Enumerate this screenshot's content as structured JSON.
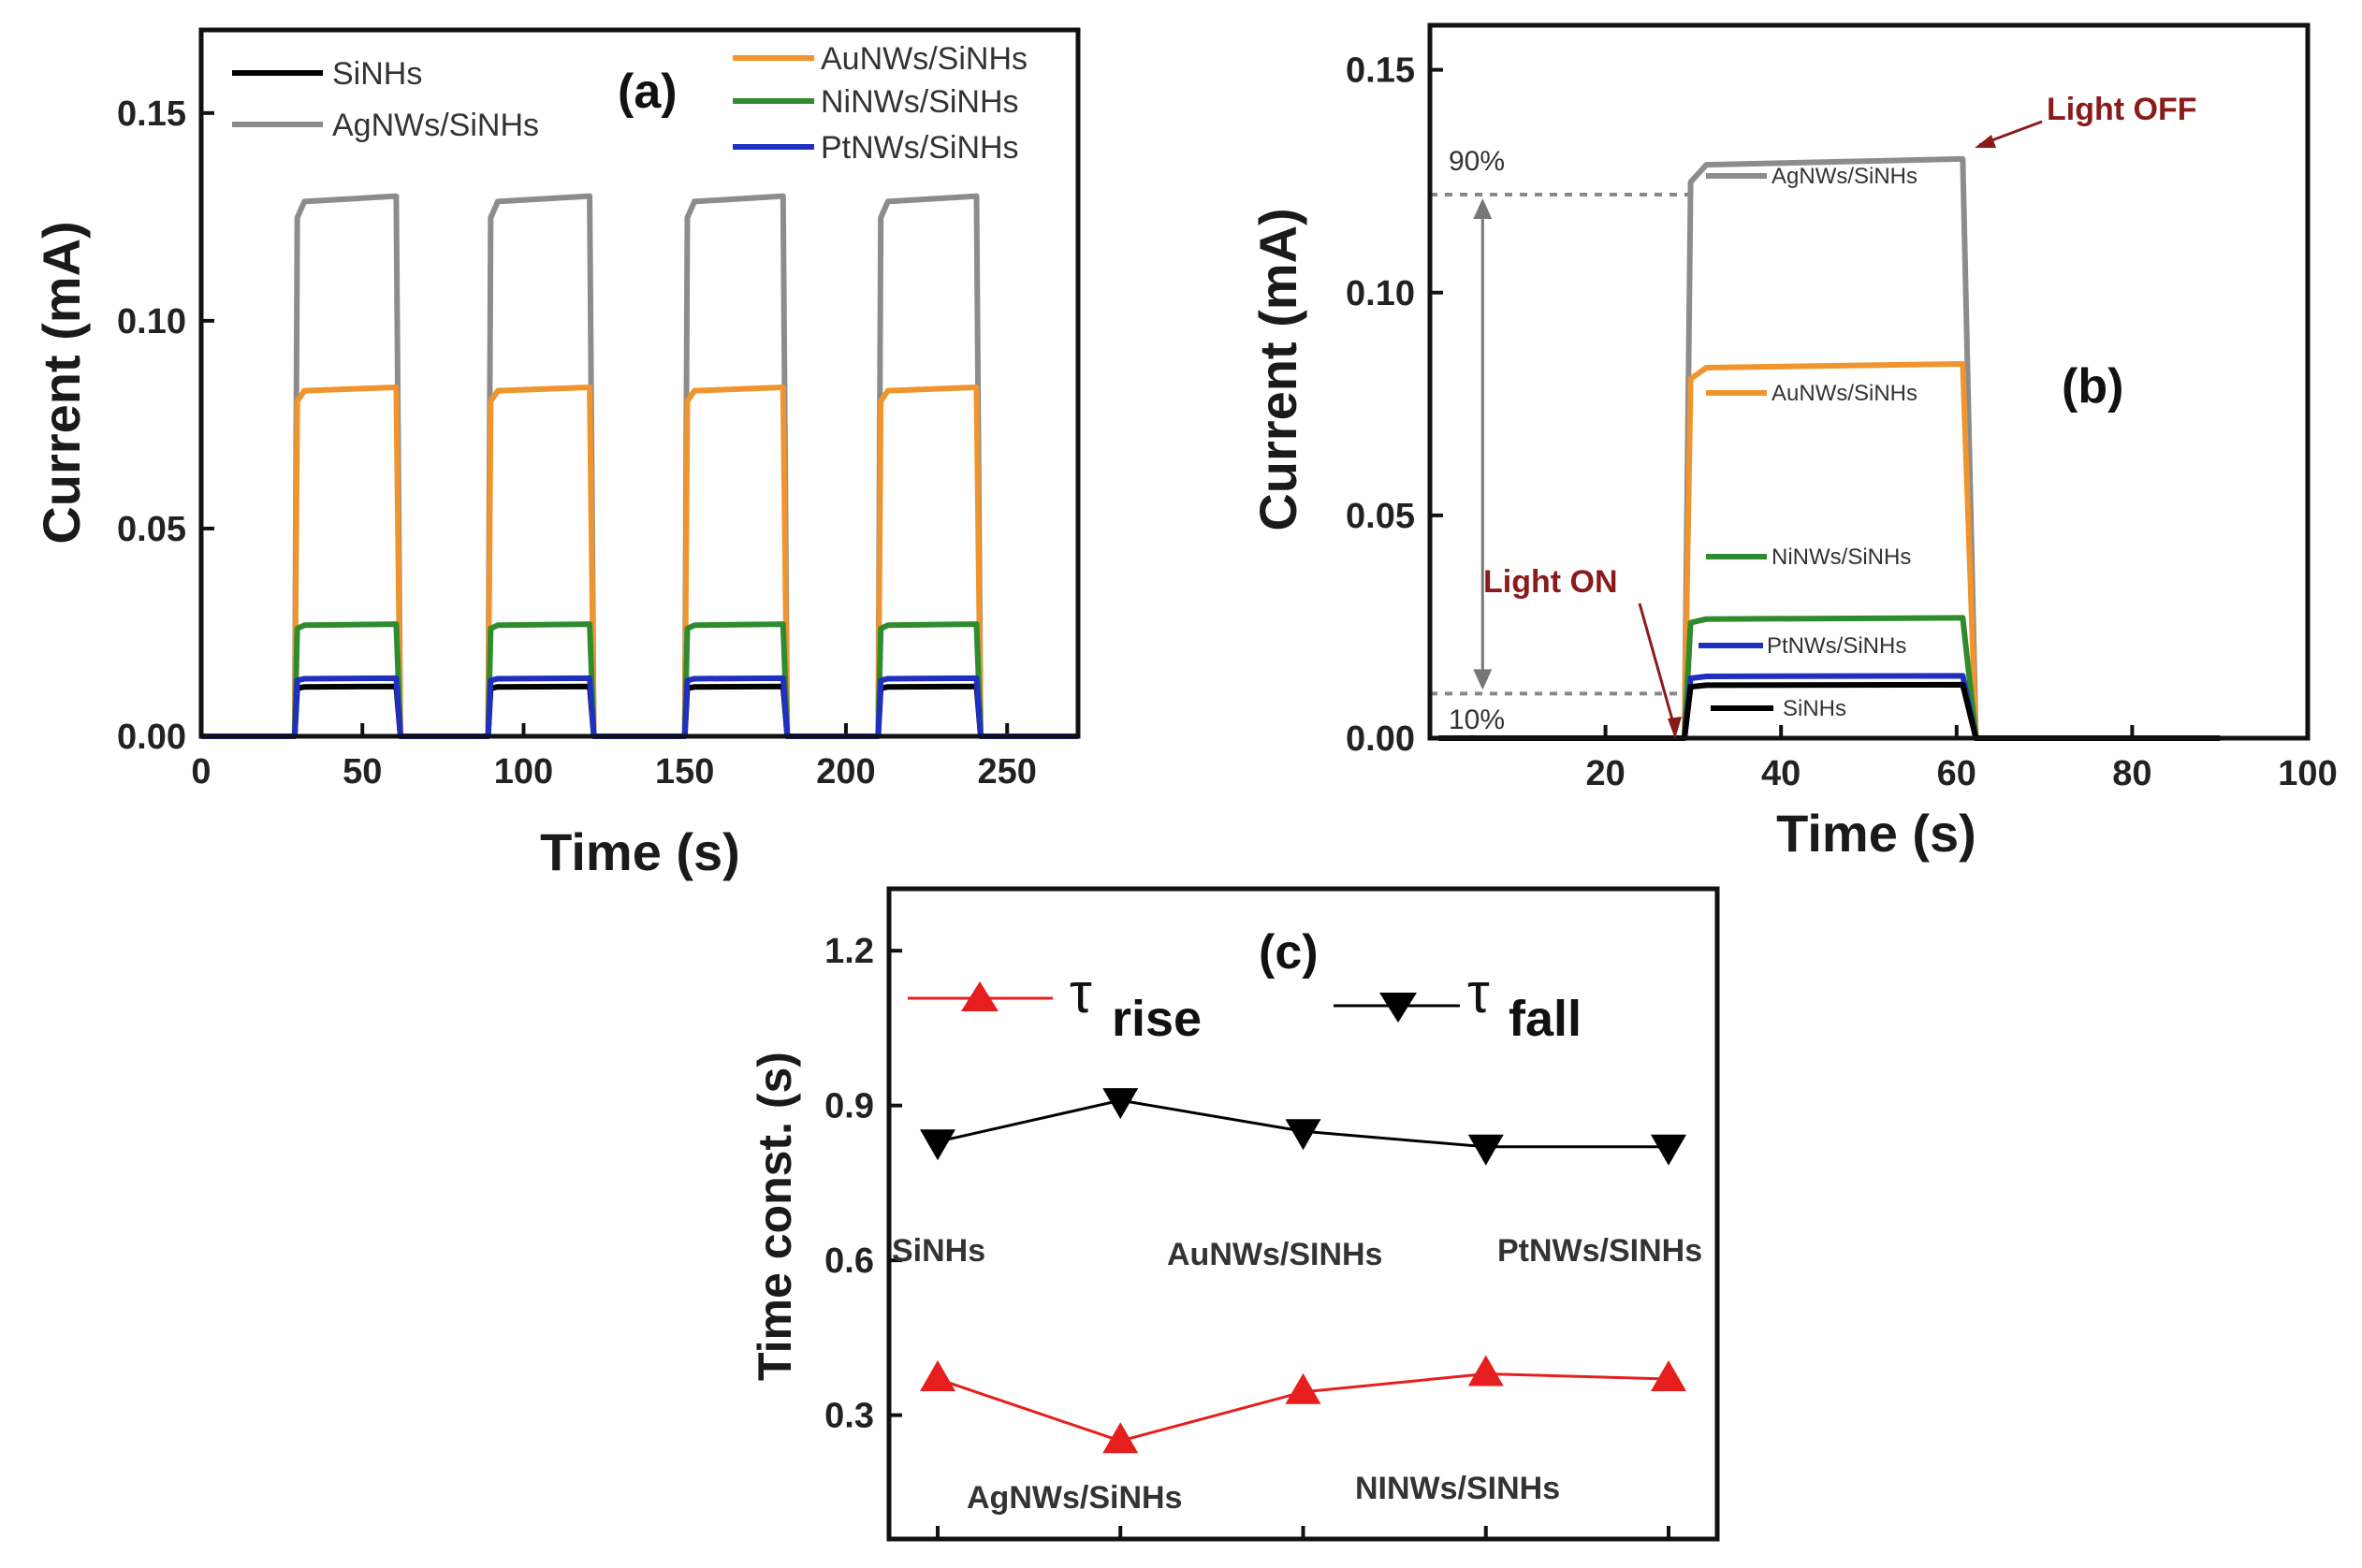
{
  "colors": {
    "SiNHs": "#000000",
    "AgNWs/SiNHs": "#8c8c8c",
    "AuNWs/SiNHs": "#f0942d",
    "NiNWs/SiNHs": "#2e8b2e",
    "PtNWs/SiNHs": "#1f2fbf",
    "rise": "#e61e1e",
    "fall": "#000000",
    "annotation": "#8b1a1a"
  },
  "chart_data": [
    {
      "id": "a",
      "type": "line",
      "panel_label": "(a)",
      "xlabel": "Time (s)",
      "ylabel": "Current (mA)",
      "xlim": [
        0,
        272
      ],
      "ylim": [
        0,
        0.17
      ],
      "xticks": [
        0,
        50,
        100,
        150,
        200,
        250
      ],
      "xtick_labels": [
        "0",
        "50",
        "100",
        "150",
        "200",
        "250"
      ],
      "yticks": [
        0,
        0.05,
        0.1,
        0.15
      ],
      "ytick_labels": [
        "0.00",
        "0.05",
        "0.10",
        "0.15"
      ],
      "on_off_cycles": [
        [
          29,
          61
        ],
        [
          89,
          121
        ],
        [
          150,
          181
        ],
        [
          210,
          241
        ]
      ],
      "series": [
        {
          "name": "SiNHs",
          "on": 0.012,
          "off": 0.0
        },
        {
          "name": "AgNWs/SiNHs",
          "on": 0.13,
          "off": 0.0
        },
        {
          "name": "AuNWs/SiNHs",
          "on": 0.084,
          "off": 0.0
        },
        {
          "name": "NiNWs/SiNHs",
          "on": 0.027,
          "off": 0.0
        },
        {
          "name": "PtNWs/SiNHs",
          "on": 0.014,
          "off": 0.0
        }
      ],
      "legend_left": [
        "SiNHs",
        "AgNWs/SiNHs"
      ],
      "legend_right": [
        "AuNWs/SiNHs",
        "NiNWs/SiNHs",
        "PtNWs/SiNHs"
      ]
    },
    {
      "id": "b",
      "type": "line",
      "panel_label": "(b)",
      "xlabel": "Time (s)",
      "ylabel": "Current (mA)",
      "xlim": [
        0,
        100
      ],
      "ylim": [
        0,
        0.16
      ],
      "xticks": [
        20,
        40,
        60,
        80,
        100
      ],
      "xtick_labels": [
        "20",
        "40",
        "60",
        "80",
        "100"
      ],
      "yticks": [
        0,
        0.05,
        0.1,
        0.15
      ],
      "ytick_labels": [
        "0.00",
        "0.05",
        "0.10",
        "0.15"
      ],
      "on_time": 29,
      "off_time": 61,
      "series": [
        {
          "name": "AgNWs/SiNHs",
          "on": 0.13
        },
        {
          "name": "AuNWs/SiNHs",
          "on": 0.084
        },
        {
          "name": "NiNWs/SiNHs",
          "on": 0.027
        },
        {
          "name": "PtNWs/SiNHs",
          "on": 0.014
        },
        {
          "name": "SiNHs",
          "on": 0.012
        }
      ],
      "inline_labels": [
        "AgNWs/SiNHs",
        "AuNWs/SiNHs",
        "NiNWs/SiNHs",
        "PtNWs/SiNHs",
        "SiNHs"
      ],
      "level_90": 0.122,
      "level_10": 0.01,
      "label_90": "90%",
      "label_10": "10%",
      "annotation_on": "Light ON",
      "annotation_off": "Light OFF"
    },
    {
      "id": "c",
      "type": "line",
      "panel_label": "(c)",
      "ylabel": "Time const. (s)",
      "ylim": [
        0.06,
        1.32
      ],
      "yticks": [
        0.3,
        0.6,
        0.9,
        1.2
      ],
      "ytick_labels": [
        "0.3",
        "0.6",
        "0.9",
        "1.2"
      ],
      "categories": [
        "SiNHs",
        "AgNWs/SiNHs",
        "AuNWs/SiNHs",
        "NiNWs/SiNHs",
        "PtNWs/SiNHs"
      ],
      "category_label_text": [
        "SiNHs",
        "AgNWs/SiNHs",
        "AuNWs/SINHs",
        "NINWs/SINHs",
        "PtNWs/SINHs"
      ],
      "series": [
        {
          "name": "τ rise",
          "symbol": "τ",
          "subscript": "rise",
          "values": [
            0.37,
            0.25,
            0.345,
            0.38,
            0.37
          ]
        },
        {
          "name": "τ fall",
          "symbol": "τ",
          "subscript": "fall",
          "values": [
            0.83,
            0.91,
            0.85,
            0.82,
            0.82
          ]
        }
      ]
    }
  ]
}
